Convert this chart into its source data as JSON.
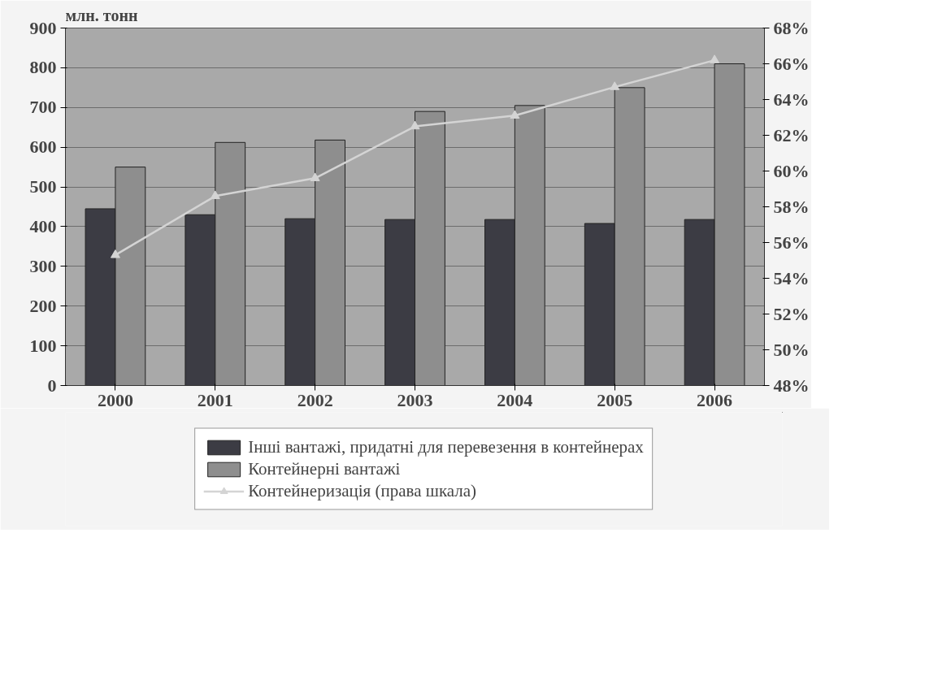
{
  "chart_data": {
    "type": "bar",
    "ylabel": "млн. тонн",
    "categories": [
      "2000",
      "2001",
      "2002",
      "2003",
      "2004",
      "2005",
      "2006"
    ],
    "series": [
      {
        "name": "Інші вантажі, придатні для перевезення в контейнерах",
        "color": "#3c3c44",
        "values": [
          445,
          430,
          420,
          418,
          418,
          408,
          418
        ]
      },
      {
        "name": "Контейнерні вантажі",
        "color": "#8e8e8e",
        "values": [
          550,
          612,
          618,
          690,
          705,
          750,
          810
        ]
      },
      {
        "name": "Контейнеризація (права шкала)",
        "type": "line",
        "axis": "y2",
        "color": "#d4d4d4",
        "marker": "triangle",
        "values": [
          55.3,
          58.6,
          59.6,
          62.5,
          63.1,
          64.7,
          66.2
        ]
      }
    ],
    "ylim": [
      0,
      900
    ],
    "yticks": [
      0,
      100,
      200,
      300,
      400,
      500,
      600,
      700,
      800,
      900
    ],
    "y2lim": [
      48,
      68
    ],
    "y2ticks": [
      {
        "value": 48,
        "label": "48%"
      },
      {
        "value": 50,
        "label": "50%"
      },
      {
        "value": 52,
        "label": "52%"
      },
      {
        "value": 54,
        "label": "54%"
      },
      {
        "value": 56,
        "label": "56%"
      },
      {
        "value": 58,
        "label": "58%"
      },
      {
        "value": 60,
        "label": "60%"
      },
      {
        "value": 62,
        "label": "62%"
      },
      {
        "value": 64,
        "label": "64%"
      },
      {
        "value": 66,
        "label": "66%"
      },
      {
        "value": 68,
        "label": "68%"
      }
    ],
    "grid": "y",
    "legend": "bottom"
  }
}
